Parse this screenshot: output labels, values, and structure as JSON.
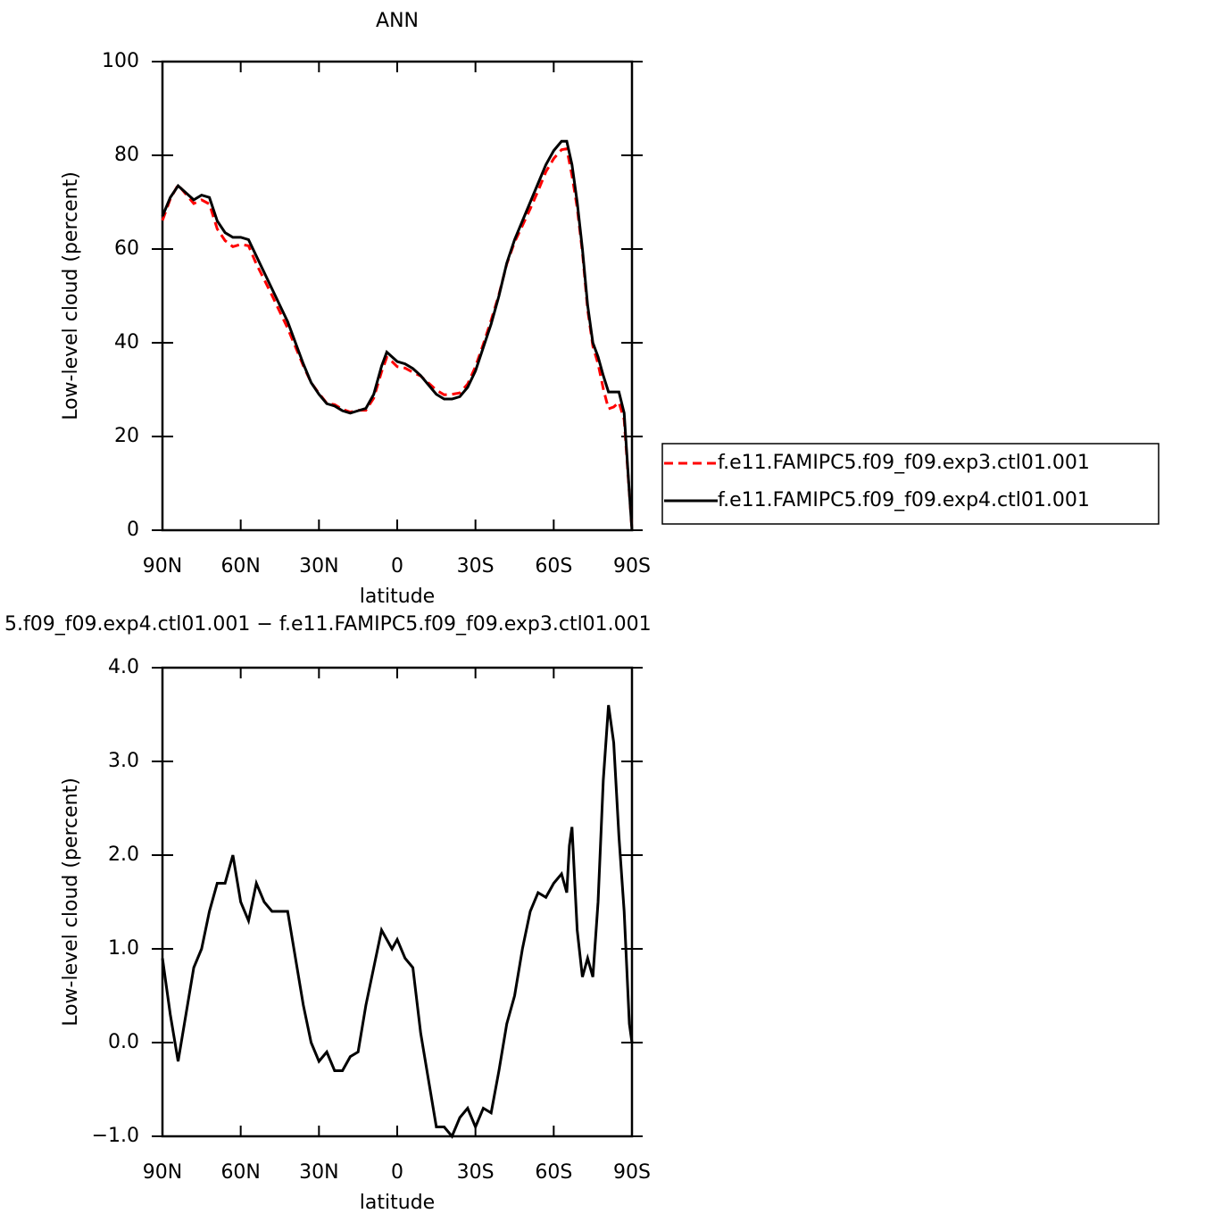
{
  "chart_data": [
    {
      "type": "line",
      "title": "ANN",
      "x_label": "latitude",
      "y_label": "Low-level cloud (percent)",
      "x": [
        90,
        87,
        84,
        81,
        78,
        75,
        72,
        69,
        66,
        63,
        60,
        57,
        54,
        51,
        48,
        45,
        42,
        39,
        36,
        33,
        30,
        27,
        24,
        21,
        18,
        15,
        12,
        9,
        6,
        4,
        2,
        0,
        -3,
        -6,
        -9,
        -12,
        -15,
        -18,
        -21,
        -24,
        -27,
        -30,
        -33,
        -36,
        -39,
        -42,
        -45,
        -48,
        -51,
        -54,
        -57,
        -60,
        -63,
        -65,
        -67,
        -69,
        -71,
        -73,
        -75,
        -77,
        -79,
        -81,
        -83,
        -85,
        -87,
        -89,
        -90
      ],
      "series": [
        {
          "name": "f.e11.FAMIPC5.f09_f09.exp3.ctl01.001",
          "color": "#ff0000",
          "line_style": "dashed",
          "values": [
            66.1,
            70.7,
            73.7,
            71.7,
            69.7,
            70.5,
            69.6,
            64.3,
            61.8,
            60.5,
            61.0,
            60.7,
            56.8,
            53.5,
            50.1,
            46.6,
            43.1,
            39.1,
            35.1,
            31.5,
            29.2,
            27.1,
            26.8,
            25.8,
            25.2,
            25.6,
            25.6,
            28.2,
            33.8,
            36.9,
            36.0,
            34.9,
            34.6,
            33.7,
            32.9,
            31.4,
            29.9,
            28.9,
            29.0,
            29.3,
            31.2,
            34.9,
            39.7,
            44.8,
            50.3,
            56.8,
            61.5,
            65.0,
            68.6,
            72.4,
            76.5,
            79.3,
            81.2,
            81.4,
            75.7,
            68.8,
            59.3,
            47.1,
            39.3,
            35.5,
            30.2,
            25.9,
            26.3,
            27.3,
            23.6,
            7.8,
            0
          ]
        },
        {
          "name": "f.e11.FAMIPC5.f09_f09.exp4.ctl01.001",
          "color": "#000000",
          "line_style": "solid",
          "values": [
            67,
            71,
            73.5,
            72,
            70.5,
            71.5,
            71,
            66,
            63.5,
            62.5,
            62.5,
            62,
            58.5,
            55,
            51.5,
            48,
            44.5,
            40,
            35.5,
            31.5,
            29,
            27,
            26.5,
            25.5,
            25,
            25.5,
            26,
            29,
            35,
            38,
            37,
            36,
            35.5,
            34.5,
            33,
            31,
            29,
            28,
            28,
            28.5,
            30.5,
            34,
            39,
            44,
            50,
            57,
            62,
            66,
            70,
            74,
            78,
            81,
            83,
            83,
            78,
            70,
            60,
            48,
            40,
            37,
            33,
            29.5,
            29.5,
            29.5,
            25,
            8,
            0
          ]
        }
      ],
      "xlim": [
        90,
        -90
      ],
      "xticks": [
        {
          "value": 90,
          "label": "90N"
        },
        {
          "value": 60,
          "label": "60N"
        },
        {
          "value": 30,
          "label": "30N"
        },
        0,
        {
          "value": -30,
          "label": "30S"
        },
        {
          "value": -60,
          "label": "60S"
        },
        {
          "value": -90,
          "label": "90S"
        }
      ],
      "ylim": [
        0,
        100
      ],
      "yticks": [
        0,
        20,
        40,
        60,
        80,
        100
      ],
      "legend": "right"
    },
    {
      "type": "line",
      "title": "5.f09_f09.exp4.ctl01.001 − f.e11.FAMIPC5.f09_f09.exp3.ctl01.001",
      "x_label": "latitude",
      "y_label": "Low-level cloud (percent)",
      "x": [
        90,
        87,
        84,
        81,
        78,
        75,
        72,
        69,
        66,
        63,
        60,
        57,
        54,
        51,
        48,
        45,
        42,
        39,
        36,
        33,
        30,
        27,
        24,
        21,
        18,
        15,
        12,
        9,
        6,
        4,
        2,
        0,
        -3,
        -6,
        -9,
        -12,
        -15,
        -18,
        -21,
        -24,
        -27,
        -30,
        -33,
        -36,
        -39,
        -42,
        -45,
        -48,
        -51,
        -54,
        -57,
        -60,
        -63,
        -65,
        -66,
        -67,
        -69,
        -71,
        -73,
        -75,
        -77,
        -79,
        -81,
        -83,
        -85,
        -87,
        -89,
        -90
      ],
      "series": [
        {
          "color": "#000000",
          "line_style": "solid",
          "values": [
            0.9,
            0.3,
            -0.2,
            0.3,
            0.8,
            1.0,
            1.4,
            1.7,
            1.7,
            2.0,
            1.5,
            1.3,
            1.7,
            1.5,
            1.4,
            1.4,
            1.4,
            0.9,
            0.4,
            0.0,
            -0.2,
            -0.1,
            -0.3,
            -0.3,
            -0.15,
            -0.1,
            0.4,
            0.8,
            1.2,
            1.1,
            1.0,
            1.1,
            0.9,
            0.8,
            0.1,
            -0.4,
            -0.9,
            -0.9,
            -1.0,
            -0.8,
            -0.7,
            -0.9,
            -0.7,
            -0.75,
            -0.3,
            0.2,
            0.5,
            1.0,
            1.4,
            1.6,
            1.55,
            1.7,
            1.8,
            1.6,
            2.1,
            2.3,
            1.2,
            0.7,
            0.9,
            0.7,
            1.5,
            2.8,
            3.6,
            3.2,
            2.2,
            1.4,
            0.2,
            0
          ]
        }
      ],
      "xlim": [
        90,
        -90
      ],
      "xticks": [
        {
          "value": 90,
          "label": "90N"
        },
        {
          "value": 60,
          "label": "60N"
        },
        {
          "value": 30,
          "label": "30N"
        },
        0,
        {
          "value": -30,
          "label": "30S"
        },
        {
          "value": -60,
          "label": "60S"
        },
        {
          "value": -90,
          "label": "90S"
        }
      ],
      "ylim": [
        -1,
        4
      ],
      "yticks": [
        {
          "value": -1,
          "label": "−1.0"
        },
        {
          "value": 0,
          "label": "0.0"
        },
        {
          "value": 1,
          "label": "1.0"
        },
        {
          "value": 2,
          "label": "2.0"
        },
        {
          "value": 3,
          "label": "3.0"
        },
        {
          "value": 4,
          "label": "4.0"
        }
      ]
    }
  ]
}
